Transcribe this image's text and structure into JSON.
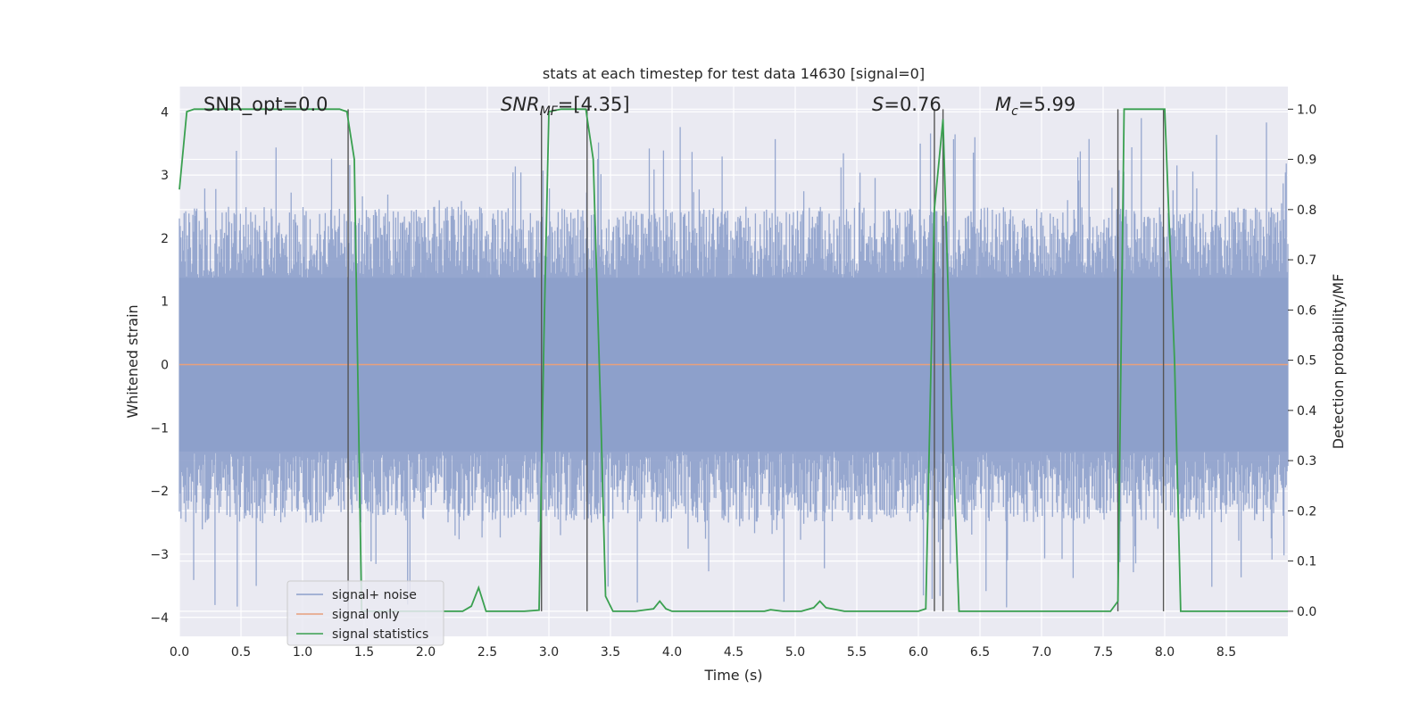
{
  "chart_data": {
    "type": "line",
    "title": "stats at each timestep for test data 14630 [signal=0]",
    "xlabel": "Time (s)",
    "ylabel": "Whitened strain",
    "y2label": "Detection probability/MF",
    "xlim": [
      0.0,
      9.0
    ],
    "ylim": [
      -4.3,
      4.4
    ],
    "y2lim": [
      -0.05,
      1.045
    ],
    "xticks": [
      "0.0",
      "0.5",
      "1.0",
      "1.5",
      "2.0",
      "2.5",
      "3.0",
      "3.5",
      "4.0",
      "4.5",
      "5.0",
      "5.5",
      "6.0",
      "6.5",
      "7.0",
      "7.5",
      "8.0",
      "8.5"
    ],
    "xtick_values": [
      0,
      0.5,
      1,
      1.5,
      2,
      2.5,
      3,
      3.5,
      4,
      4.5,
      5,
      5.5,
      6,
      6.5,
      7,
      7.5,
      8,
      8.5
    ],
    "yticks": [
      "−4",
      "−3",
      "−2",
      "−1",
      "0",
      "1",
      "2",
      "3",
      "4"
    ],
    "ytick_values": [
      -4,
      -3,
      -2,
      -1,
      0,
      1,
      2,
      3,
      4
    ],
    "y2ticks": [
      "0.0",
      "0.1",
      "0.2",
      "0.3",
      "0.4",
      "0.5",
      "0.6",
      "0.7",
      "0.8",
      "0.9",
      "1.0"
    ],
    "y2tick_values": [
      0,
      0.1,
      0.2,
      0.3,
      0.4,
      0.5,
      0.6,
      0.7,
      0.8,
      0.9,
      1.0
    ],
    "grid": true,
    "legend_placement": "lower-left",
    "annotations": {
      "snr_opt": "SNR_opt=0.0",
      "snr_mf_prefix": "SNR",
      "snr_mf_sub": "MF",
      "snr_mf_value": "=[4.35]",
      "s_var": "S",
      "s_value": "=0.76",
      "mc_var": "M",
      "mc_sub": "c",
      "mc_value": "=5.99"
    },
    "series": [
      {
        "name": "signal+ noise",
        "color": "#8da0cb",
        "axis": "left",
        "kind": "noise",
        "amplitude_envelope": 2.5,
        "spike_range": [
          -3.9,
          3.9
        ]
      },
      {
        "name": "signal only",
        "color": "#e8a07c",
        "axis": "left",
        "x": [
          0.0,
          9.0
        ],
        "y": [
          0.0,
          0.0
        ]
      },
      {
        "name": "signal statistics",
        "color": "#3aa050",
        "axis": "right",
        "x": [
          0.0,
          0.06,
          0.12,
          0.2,
          0.4,
          0.6,
          0.8,
          1.0,
          1.2,
          1.3,
          1.36,
          1.42,
          1.48,
          1.52,
          1.6,
          1.8,
          2.0,
          2.3,
          2.37,
          2.43,
          2.49,
          2.6,
          2.8,
          2.92,
          2.96,
          3.0,
          3.1,
          3.2,
          3.3,
          3.36,
          3.42,
          3.46,
          3.52,
          3.7,
          3.85,
          3.9,
          3.95,
          4.0,
          4.2,
          4.5,
          4.75,
          4.8,
          4.9,
          5.05,
          5.15,
          5.2,
          5.25,
          5.4,
          5.6,
          5.8,
          6.0,
          6.06,
          6.13,
          6.2,
          6.27,
          6.33,
          6.5,
          7.0,
          7.2,
          7.56,
          7.62,
          7.67,
          7.75,
          7.9,
          8.0,
          8.08,
          8.13,
          8.2,
          8.5,
          8.9,
          9.0
        ],
        "y": [
          0.84,
          0.995,
          1.0,
          1.0,
          1.0,
          1.0,
          1.0,
          1.0,
          1.0,
          1.0,
          0.995,
          0.9,
          0.0,
          0.0,
          0.0,
          0.0,
          0.0,
          0.0,
          0.01,
          0.047,
          0.0,
          0.0,
          0.0,
          0.002,
          0.55,
          0.995,
          1.0,
          1.0,
          1.0,
          0.9,
          0.4,
          0.03,
          0.0,
          0.0,
          0.005,
          0.02,
          0.005,
          0.0,
          0.0,
          0.0,
          0.0,
          0.003,
          0.0,
          0.0,
          0.007,
          0.02,
          0.007,
          0.0,
          0.0,
          0.0,
          0.0,
          0.005,
          0.8,
          0.98,
          0.4,
          0.0,
          0.0,
          0.0,
          0.0,
          0.0,
          0.02,
          1.0,
          1.0,
          1.0,
          1.0,
          0.5,
          0.0,
          0.0,
          0.0,
          0.0,
          0.0
        ]
      }
    ],
    "vertical_markers_x": [
      1.37,
      2.94,
      3.31,
      6.13,
      6.2,
      7.62,
      7.99
    ]
  }
}
